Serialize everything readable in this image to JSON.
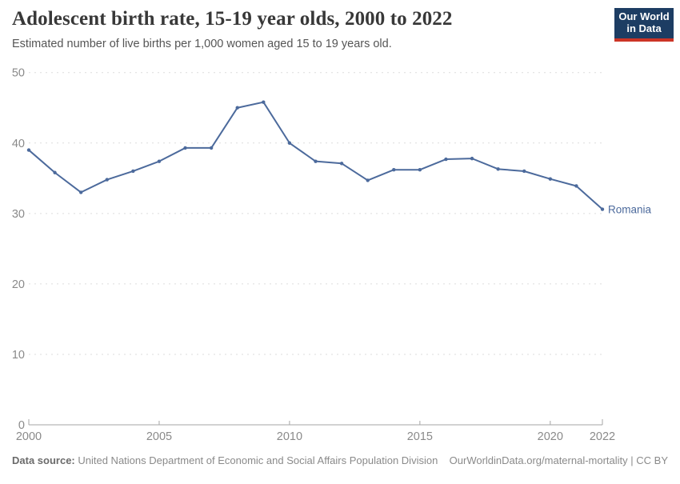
{
  "header": {
    "title": "Adolescent birth rate, 15-19 year olds, 2000 to 2022",
    "subtitle": "Estimated number of live births per 1,000 women aged 15 to 19 years old."
  },
  "logo": {
    "line1": "Our World",
    "line2": "in Data",
    "bg_color": "#1d3d63",
    "accent_color": "#cc3426"
  },
  "chart_data": {
    "type": "line",
    "x": [
      2000,
      2001,
      2002,
      2003,
      2004,
      2005,
      2006,
      2007,
      2008,
      2009,
      2010,
      2011,
      2012,
      2013,
      2014,
      2015,
      2016,
      2017,
      2018,
      2019,
      2020,
      2021,
      2022
    ],
    "series": [
      {
        "name": "Romania",
        "color": "#4c6a9c",
        "values": [
          39.0,
          35.8,
          33.0,
          34.8,
          36.0,
          37.4,
          39.3,
          39.3,
          45.0,
          45.8,
          40.0,
          37.4,
          37.1,
          34.7,
          36.2,
          36.2,
          37.7,
          37.8,
          36.3,
          36.0,
          34.9,
          33.9,
          30.6
        ]
      }
    ],
    "title": "Adolescent birth rate, 15-19 year olds, 2000 to 2022",
    "xlabel": "",
    "ylabel": "",
    "ylim": [
      0,
      50
    ],
    "xlim": [
      2000,
      2022
    ],
    "yticks": [
      0,
      10,
      20,
      30,
      40,
      50
    ],
    "xticks": [
      2000,
      2005,
      2010,
      2015,
      2020,
      2022
    ],
    "grid": "dashed-horizontal",
    "legend_position": "end-of-line-label",
    "grid_color": "#dcdcdc",
    "axis_color": "#a6a6a6",
    "tick_label_color": "#8a8a8a"
  },
  "footer": {
    "datasource_label": "Data source:",
    "datasource_text": " United Nations Department of Economic and Social Affairs Population Division",
    "attribution": "OurWorldinData.org/maternal-mortality | CC BY"
  }
}
